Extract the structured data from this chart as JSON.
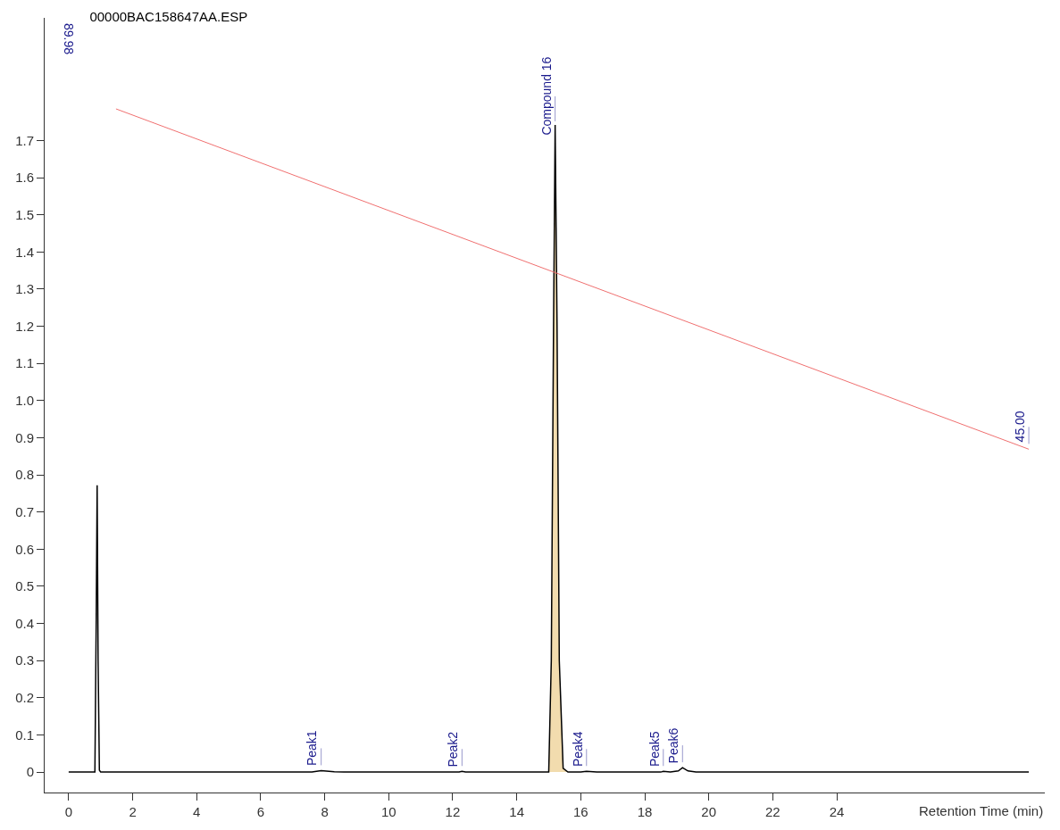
{
  "chart_data": {
    "type": "line",
    "title": "00000BAC158647AA.ESP",
    "xlabel": "Retention Time (min)",
    "xlim": [
      -0.75,
      30.5
    ],
    "xticks": [
      0,
      2,
      4,
      6,
      8,
      10,
      12,
      14,
      16,
      18,
      20,
      22,
      24
    ],
    "ylim": [
      -0.055,
      2.03
    ],
    "yticks": [
      0,
      0.1,
      0.2,
      0.3,
      0.4,
      0.5,
      0.6,
      0.7,
      0.8,
      0.9,
      {
        "value": 1,
        "label": "1.0"
      },
      1.1,
      1.2,
      1.3,
      1.4,
      1.5,
      1.6,
      1.7
    ],
    "marker": "none",
    "line_style": "solid",
    "series": [
      {
        "type": "area",
        "color": "#f2dcae",
        "x": [
          15.0,
          15.08,
          15.15,
          15.2,
          15.26,
          15.33,
          15.45,
          15.6
        ],
        "values": [
          0,
          0.3,
          1.2,
          1.742,
          1.2,
          0.3,
          0.01,
          0
        ]
      },
      {
        "color": "#000000",
        "x": [
          0,
          0.82,
          0.86,
          0.89,
          0.92,
          0.96,
          1.0,
          7.6,
          7.89,
          8.3,
          8.6,
          12.2,
          12.29,
          12.4,
          15.0,
          15.08,
          15.15,
          15.2,
          15.26,
          15.33,
          15.45,
          15.6,
          16.0,
          16.18,
          16.5,
          18.5,
          18.58,
          18.8,
          19.05,
          19.18,
          19.35,
          19.6,
          30
        ],
        "values": [
          0,
          0,
          0.4,
          0.772,
          0.3,
          0.005,
          0,
          0,
          0.004,
          0.001,
          0,
          0,
          0.002,
          0,
          0,
          0.3,
          1.2,
          1.742,
          1.2,
          0.3,
          0.01,
          0,
          0,
          0.002,
          0,
          0,
          0.002,
          0,
          0.003,
          0.012,
          0.003,
          0,
          0
        ]
      },
      {
        "color": "#f07070",
        "x": [
          1.48,
          30
        ],
        "values": [
          1.785,
          0.869
        ]
      }
    ],
    "annotations": [
      "89.98",
      {
        "text": "Peak1",
        "x": 7.89,
        "y": 0.004
      },
      {
        "text": "Peak2",
        "x": 12.29,
        "y": 0.002
      },
      {
        "text": "Compound 16",
        "x": 15.2,
        "y": 1.742
      },
      {
        "text": "Peak4",
        "x": 16.18,
        "y": 0.002
      },
      {
        "text": "Peak5",
        "x": 18.58,
        "y": 0.002
      },
      {
        "text": "Peak6",
        "x": 19.18,
        "y": 0.012
      },
      {
        "text": "45.00",
        "x": 30,
        "y": 0.869
      }
    ]
  }
}
